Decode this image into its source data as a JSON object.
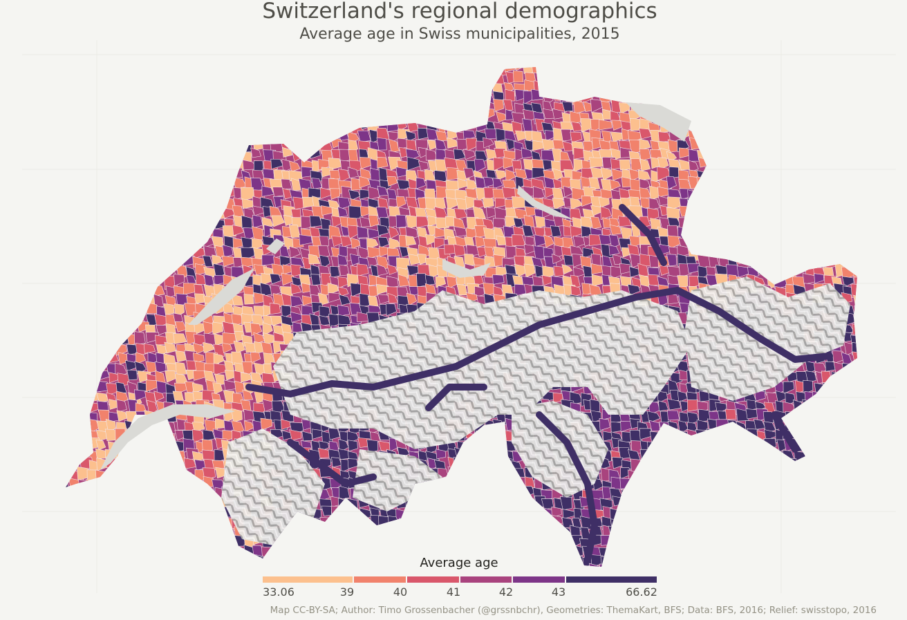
{
  "title": "Switzerland's regional demographics",
  "subtitle": "Average age in Swiss municipalities, 2015",
  "legend": {
    "title": "Average age",
    "breaks": [
      "33.06",
      "39",
      "40",
      "41",
      "42",
      "43",
      "66.62"
    ],
    "colors": [
      "#fcc08e",
      "#f1826c",
      "#d9576b",
      "#a9437e",
      "#7d3588",
      "#3f2f66"
    ]
  },
  "caption": "Map CC-BY-SA; Author: Timo Grossenbacher (@grssnbchr), Geometries: ThemaKart, BFS; Data: BFS, 2016; Relief: swisstopo, 2016",
  "colors": {
    "background": "#f5f5f2",
    "grid": "#ebebe5",
    "lake": "#dadad6",
    "relief": "#d9d9d6"
  }
}
